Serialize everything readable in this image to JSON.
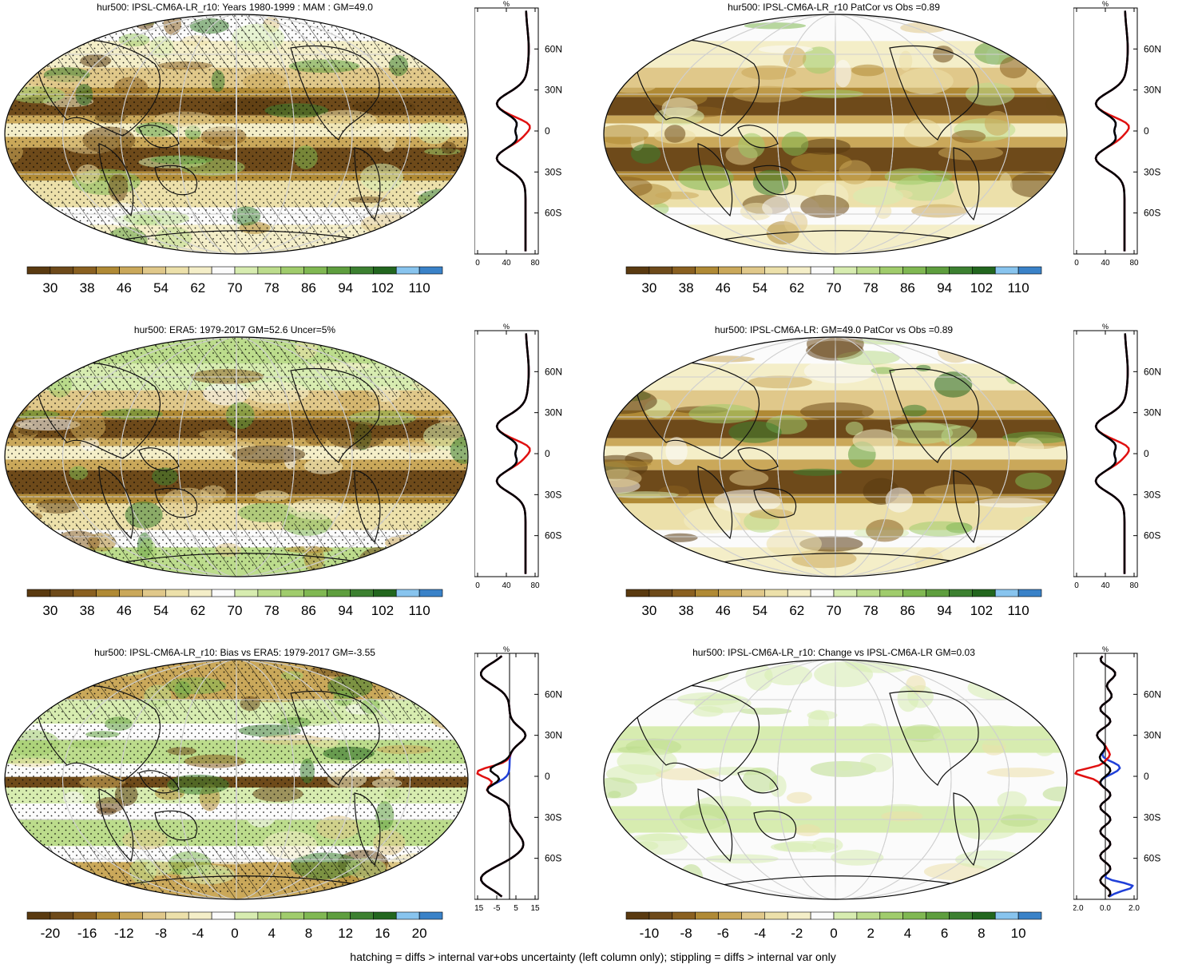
{
  "colors": {
    "ramp": [
      "#5a3a10",
      "#6e4a1a",
      "#8a6020",
      "#b08a35",
      "#caa85a",
      "#e0c88a",
      "#ece0aa",
      "#f4eec8",
      "#fbfbfb",
      "#d7ecb0",
      "#bcdc8c",
      "#a0cc6c",
      "#80b852",
      "#5e9e3e",
      "#3c8030",
      "#22661e",
      "#88c4ee",
      "#3a82c8"
    ],
    "obs_line": "#1f3fd8",
    "model_line": "#e01010",
    "mean_line": "#000000"
  },
  "panels": [
    {
      "title": "hur500: IPSL-CM6A-LR_r10: Years 1980-1999 : MAM : GM=49.0",
      "zonal_unit": "%",
      "zonal_xticks": [
        "0",
        "40",
        "80"
      ],
      "lat_labels": [
        "60N",
        "30N",
        "0",
        "30S",
        "60S"
      ],
      "cbar_labels": [
        "30",
        "38",
        "46",
        "54",
        "62",
        "70",
        "78",
        "86",
        "94",
        "102",
        "110"
      ],
      "hatching": true,
      "zonal_kind": "abs"
    },
    {
      "title": "hur500: IPSL-CM6A-LR_r10 PatCor vs Obs =0.89",
      "zonal_unit": "%",
      "zonal_xticks": [
        "0",
        "40",
        "80"
      ],
      "lat_labels": [
        "60N",
        "30N",
        "0",
        "30S",
        "60S"
      ],
      "cbar_labels": [
        "30",
        "38",
        "46",
        "54",
        "62",
        "70",
        "78",
        "86",
        "94",
        "102",
        "110"
      ],
      "hatching": false,
      "zonal_kind": "abs"
    },
    {
      "title": "hur500: ERA5: 1979-2017 GM=52.6 Uncer=5%",
      "zonal_unit": "%",
      "zonal_xticks": [
        "0",
        "40",
        "80"
      ],
      "lat_labels": [
        "60N",
        "30N",
        "0",
        "30S",
        "60S"
      ],
      "cbar_labels": [
        "30",
        "38",
        "46",
        "54",
        "62",
        "70",
        "78",
        "86",
        "94",
        "102",
        "110"
      ],
      "hatching": true,
      "zonal_kind": "abs"
    },
    {
      "title": "hur500: IPSL-CM6A-LR: GM=49.0 PatCor vs Obs =0.89",
      "zonal_unit": "%",
      "zonal_xticks": [
        "0",
        "40",
        "80"
      ],
      "lat_labels": [
        "60N",
        "30N",
        "0",
        "30S",
        "60S"
      ],
      "cbar_labels": [
        "30",
        "38",
        "46",
        "54",
        "62",
        "70",
        "78",
        "86",
        "94",
        "102",
        "110"
      ],
      "hatching": false,
      "zonal_kind": "abs"
    },
    {
      "title": "hur500: IPSL-CM6A-LR_r10: Bias vs ERA5: 1979-2017 GM=-3.55",
      "zonal_unit": "%",
      "zonal_xticks": [
        "-15",
        "-5",
        "5",
        "15"
      ],
      "lat_labels": [
        "60N",
        "30N",
        "0",
        "30S",
        "60S"
      ],
      "cbar_labels": [
        "-20",
        "-16",
        "-12",
        "-8",
        "-4",
        "0",
        "4",
        "8",
        "12",
        "16",
        "20"
      ],
      "hatching": true,
      "zonal_kind": "bias"
    },
    {
      "title": "hur500: IPSL-CM6A-LR_r10: Change vs IPSL-CM6A-LR GM=0.03",
      "zonal_unit": "%",
      "zonal_xticks": [
        "-2.0",
        "0.0",
        "2.0"
      ],
      "lat_labels": [
        "60N",
        "30N",
        "0",
        "30S",
        "60S"
      ],
      "cbar_labels": [
        "-10",
        "-8",
        "-6",
        "-4",
        "-2",
        "0",
        "2",
        "4",
        "6",
        "8",
        "10"
      ],
      "hatching": false,
      "zonal_kind": "change"
    }
  ],
  "footnote": "hatching = diffs > internal var+obs uncertainty (left column only); stippling = diffs > internal var only"
}
